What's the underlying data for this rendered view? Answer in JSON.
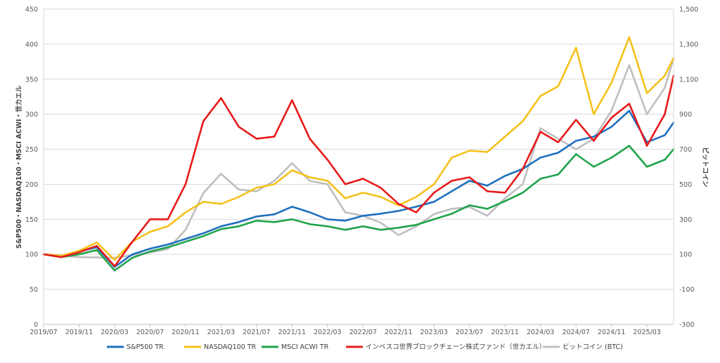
{
  "chart_data": {
    "type": "line",
    "ylabel_left": "S&P500・NASDAQ100・MSCI ACWI・世カエル",
    "ylabel_right": "ビットコイン",
    "ylim_left": [
      0,
      450
    ],
    "ylim_right": [
      -300,
      1500
    ],
    "y_ticks_left": [
      "0",
      "50",
      "100",
      "150",
      "200",
      "250",
      "300",
      "350",
      "400",
      "450"
    ],
    "y_ticks_right": [
      "-300",
      "-100",
      "100",
      "300",
      "500",
      "700",
      "900",
      "1,100",
      "1,300",
      "1,500"
    ],
    "x_tick_labels": [
      "2019/07",
      "2019/11",
      "2020/03",
      "2020/07",
      "2020/11",
      "2021/03",
      "2021/07",
      "2021/11",
      "2022/03",
      "2022/07",
      "2022/11",
      "2023/03",
      "2023/07",
      "2023/11",
      "2024/03",
      "2024/07",
      "2024/11",
      "2025/03"
    ],
    "x": [
      "2019/07",
      "2019/09",
      "2019/11",
      "2020/01",
      "2020/03",
      "2020/05",
      "2020/07",
      "2020/09",
      "2020/11",
      "2021/01",
      "2021/03",
      "2021/05",
      "2021/07",
      "2021/09",
      "2021/11",
      "2022/01",
      "2022/03",
      "2022/05",
      "2022/07",
      "2022/09",
      "2022/11",
      "2023/01",
      "2023/03",
      "2023/05",
      "2023/07",
      "2023/09",
      "2023/11",
      "2024/01",
      "2024/03",
      "2024/05",
      "2024/07",
      "2024/09",
      "2024/11",
      "2025/01",
      "2025/03",
      "2025/05",
      "2025/06"
    ],
    "grid": true,
    "legend_position": "bottom",
    "series": [
      {
        "name": "S&P500 TR",
        "axis": "left",
        "color": "#1f6fbf",
        "values": [
          100,
          98,
          104,
          110,
          82,
          100,
          108,
          114,
          122,
          130,
          140,
          146,
          154,
          157,
          168,
          160,
          150,
          148,
          155,
          158,
          162,
          168,
          175,
          190,
          205,
          198,
          212,
          222,
          238,
          245,
          262,
          268,
          282,
          305,
          260,
          270,
          288
        ]
      },
      {
        "name": "NASDAQ100 TR",
        "axis": "left",
        "color": "#f5c11b",
        "values": [
          100,
          98,
          105,
          117,
          92,
          118,
          132,
          140,
          160,
          175,
          172,
          182,
          195,
          200,
          220,
          210,
          205,
          180,
          188,
          182,
          170,
          182,
          200,
          238,
          248,
          246,
          268,
          290,
          326,
          340,
          395,
          300,
          345,
          410,
          330,
          355,
          380
        ]
      },
      {
        "name": "MSCI ACWI TR",
        "axis": "left",
        "color": "#1fa44a",
        "values": [
          100,
          96,
          100,
          106,
          77,
          95,
          104,
          110,
          118,
          126,
          136,
          140,
          148,
          146,
          150,
          143,
          140,
          135,
          140,
          135,
          138,
          142,
          150,
          158,
          170,
          165,
          176,
          188,
          208,
          214,
          243,
          225,
          238,
          255,
          225,
          235,
          250
        ]
      },
      {
        "name": "インベスコ世界ブロックチェーン株式ファンド（世カエル）",
        "axis": "left",
        "color": "#e81a1a",
        "values": [
          100,
          96,
          103,
          112,
          83,
          118,
          150,
          150,
          200,
          290,
          323,
          282,
          265,
          268,
          320,
          265,
          235,
          200,
          208,
          195,
          172,
          160,
          188,
          205,
          210,
          190,
          188,
          222,
          275,
          260,
          292,
          262,
          295,
          315,
          255,
          300,
          355
        ]
      },
      {
        "name": "ビットコイン (BTC)",
        "axis": "right",
        "color": "#bfbfbf",
        "values": [
          100,
          92,
          84,
          82,
          80,
          95,
          110,
          130,
          240,
          450,
          560,
          470,
          460,
          520,
          620,
          520,
          500,
          340,
          320,
          280,
          210,
          260,
          330,
          360,
          370,
          320,
          420,
          500,
          820,
          760,
          700,
          760,
          920,
          1180,
          900,
          1050,
          1220
        ]
      }
    ]
  }
}
